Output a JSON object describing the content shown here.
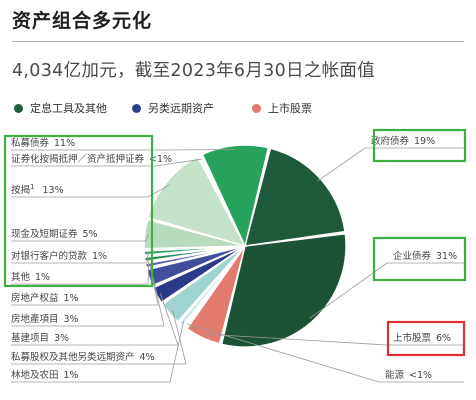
{
  "title": "资产组合多元化",
  "subtitle": "4,034亿加元，截至2023年6月30日之帐面值",
  "legend": [
    {
      "label": "定息工具及其他",
      "color": "#1b5e3b"
    },
    {
      "label": "另类远期资产",
      "color": "#2e3f8f"
    },
    {
      "label": "上市股票",
      "color": "#e07a6b"
    }
  ],
  "chart_data": {
    "type": "pie",
    "title": "资产组合多元化",
    "subtitle": "4,034亿加元，截至2023年6月30日之帐面值",
    "groups": [
      "定息工具及其他",
      "另类远期资产",
      "上市股票"
    ],
    "slices": [
      {
        "label": "政府债券",
        "value_text": "19%",
        "value": 19,
        "group": "定息工具及其他",
        "color": "#1e5a3a"
      },
      {
        "label": "企业债券",
        "value_text": "31%",
        "value": 31,
        "group": "定息工具及其他",
        "color": "#1c5336"
      },
      {
        "label": "上市股票",
        "value_text": "6%",
        "value": 6,
        "group": "上市股票",
        "color": "#e27b6d"
      },
      {
        "label": "能源",
        "value_text": "<1%",
        "value": 0.5,
        "group": "另类远期资产",
        "color": "#b9dfe2"
      },
      {
        "label": "林地及农田",
        "value_text": "1%",
        "value": 1,
        "group": "另类远期资产",
        "color": "#c9e6e6"
      },
      {
        "label": "私募股权及其他另类远期资产",
        "value_text": "4%",
        "value": 4,
        "group": "另类远期资产",
        "color": "#9fd3d0"
      },
      {
        "label": "基建项目",
        "value_text": "3%",
        "value": 3,
        "group": "另类远期资产",
        "color": "#2a3a8a"
      },
      {
        "label": "房地產項目",
        "value_text": "3%",
        "value": 3,
        "group": "另类远期资产",
        "color": "#3f4f9c"
      },
      {
        "label": "房地产权益",
        "value_text": "1%",
        "value": 1,
        "group": "另类远期资产",
        "color": "#5864ab"
      },
      {
        "label": "其他",
        "value_text": "1%",
        "value": 1,
        "group": "定息工具及其他",
        "color": "#2b8a55"
      },
      {
        "label": "对银行客户的贷款",
        "value_text": "1%",
        "value": 1,
        "group": "定息工具及其他",
        "color": "#43a56b"
      },
      {
        "label": "现金及短期证券",
        "value_text": "5%",
        "value": 5,
        "group": "定息工具及其他",
        "color": "#b6dbbf"
      },
      {
        "label": "按揭",
        "sup": "1",
        "value_text": "13%",
        "value": 13,
        "group": "定息工具及其他",
        "color": "#c4e1c9"
      },
      {
        "label": "证券化按揭抵押／资产抵押证券",
        "value_text": "<1%",
        "value": 0.5,
        "group": "定息工具及其他",
        "color": "#dcefe0"
      },
      {
        "label": "私募债券",
        "value_text": "11%",
        "value": 11,
        "group": "定息工具及其他",
        "color": "#27a35b"
      }
    ]
  },
  "highlight_colors": {
    "green": "#3cb043",
    "red": "#e03030"
  }
}
